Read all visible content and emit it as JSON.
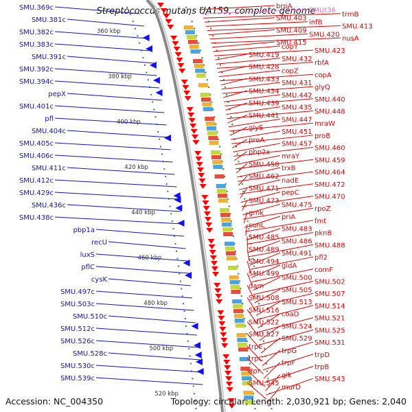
{
  "title": "Streptococcus mutans UA159, complete genome",
  "footer": {
    "accession": "Accession: NC_004350",
    "topology": "Topology: circular; Length: 2,030,921 bp; Genes: 2,040"
  },
  "colors": {
    "left_label": "#1010c8",
    "right_label": "#e00000",
    "rna_label": "#ff66cc",
    "backbone": "#999999",
    "tick": "#1f8a1f"
  },
  "ruler": [
    "360 kbp",
    "380 kbp",
    "400 kbp",
    "420 kbp",
    "440 kbp",
    "460 kbp",
    "480 kbp",
    "500 kbp",
    "520 kbp"
  ],
  "left_labels": [
    "SMU.369c",
    "SMU.381c",
    "SMU.382c",
    "SMU.383c",
    "SMU.391c",
    "SMU.392c",
    "SMU.394c",
    "pepX",
    "SMU.401c",
    "pfl",
    "SMU.404c",
    "SMU.405c",
    "SMU.406c",
    "SMU.411c",
    "SMU.412c",
    "SMU.429c",
    "SMU.436c",
    "SMU.438c",
    "pbp1a",
    "recU",
    "luxS",
    "pflC",
    "cysK",
    "SMU.497c",
    "SMU.503c",
    "SMU.510c",
    "SMU.512c",
    "SMU.526c",
    "SMU.528c",
    "SMU.530c",
    "SMU.539c"
  ],
  "right_labels": [
    "brpA",
    "SMUt36",
    "trmB",
    "SMU.403",
    "infB",
    "SMU.413",
    "SMU.409",
    "SMU.420",
    "nusA",
    "SMU.415",
    "copY",
    "SMU.423",
    "SMU.419",
    "SMU.432",
    "rbfA",
    "SMU.428",
    "copZ",
    "copA",
    "SMU.433",
    "SMU.431",
    "glyQ",
    "SMU.434",
    "SMU.442",
    "SMU.440",
    "SMU.439",
    "SMU.435",
    "SMU.448",
    "SMU.441",
    "SMU.447",
    "mraW",
    "glyS",
    "SMU.451",
    "proB",
    "proA",
    "SMU.457",
    "SMU.460",
    "pbp2x",
    "mraY",
    "SMU.459",
    "SMU.458",
    "trxB",
    "SMU.464",
    "SMU.462",
    "nadE",
    "SMU.472",
    "SMU.471",
    "pepC",
    "SMU.470",
    "SMU.473",
    "SMU.475",
    "rpoZ",
    "gmk",
    "priA",
    "fmt",
    "sunL",
    "SMU.483",
    "pknB",
    "SMU.485",
    "SMU.486",
    "SMU.488",
    "SMU.489",
    "SMU.491",
    "pfl2",
    "SMU.494",
    "gldA",
    "comF",
    "SMU.499",
    "SMU.500",
    "SMU.502",
    "dam",
    "SMU.505",
    "SMU.507",
    "SMU.508",
    "SMU.513",
    "SMU.514",
    "SMU.516",
    "coaD",
    "SMU.521",
    "SMU.522",
    "SMU.524",
    "SMU.525",
    "SMU.527",
    "SMU.529",
    "SMU.531",
    "trpE",
    "trpG",
    "trpD",
    "trpC",
    "trpF",
    "trpB",
    "dpr",
    "glk",
    "SMU.543",
    "SMU.545",
    "murD"
  ]
}
